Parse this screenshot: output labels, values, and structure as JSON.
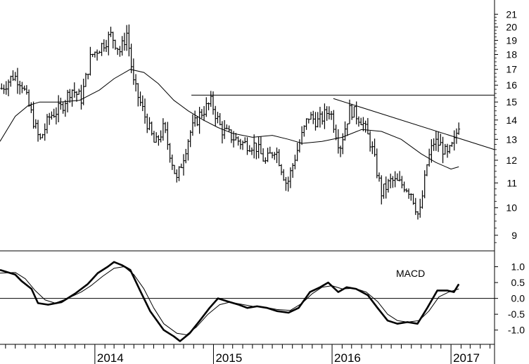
{
  "chart_data": [
    {
      "type": "ohlc",
      "panel": "price",
      "title": "",
      "xlabel": "",
      "ylabel": "",
      "scale": "log",
      "ylim": [
        8.5,
        22
      ],
      "y_ticks": [
        {
          "label": "21",
          "value": 21
        },
        {
          "label": "20",
          "value": 20
        },
        {
          "label": "19",
          "value": 19
        },
        {
          "label": "18",
          "value": 18
        },
        {
          "label": "17",
          "value": 17
        },
        {
          "label": "16",
          "value": 16
        },
        {
          "label": "15",
          "value": 15
        },
        {
          "label": "14",
          "value": 14
        },
        {
          "label": "13",
          "value": 13
        },
        {
          "label": "12",
          "value": 12
        },
        {
          "label": "11",
          "value": 11
        },
        {
          "label": "10",
          "value": 10
        },
        {
          "label": "9",
          "value": 9
        }
      ],
      "x_ticks": [
        "2014",
        "2015",
        "2016",
        "2017"
      ],
      "x_tick_dates": [
        "2014-01-01",
        "2015-01-01",
        "2016-01-01",
        "2017-01-01"
      ],
      "xlim": [
        "2013-03-15",
        "2017-05-15"
      ],
      "price_anchors": [
        {
          "date": "2013-03-20",
          "price": 15.8
        },
        {
          "date": "2013-04-25",
          "price": 16.6
        },
        {
          "date": "2013-05-20",
          "price": 16.2
        },
        {
          "date": "2013-06-20",
          "price": 14.3
        },
        {
          "date": "2013-07-15",
          "price": 12.9
        },
        {
          "date": "2013-08-15",
          "price": 14.2
        },
        {
          "date": "2013-09-20",
          "price": 14.7
        },
        {
          "date": "2013-10-20",
          "price": 15.8
        },
        {
          "date": "2013-11-20",
          "price": 15.2
        },
        {
          "date": "2013-12-20",
          "price": 17.9
        },
        {
          "date": "2014-01-20",
          "price": 18.6
        },
        {
          "date": "2014-02-20",
          "price": 19.4
        },
        {
          "date": "2014-03-20",
          "price": 18.2
        },
        {
          "date": "2014-04-10",
          "price": 19.6
        },
        {
          "date": "2014-04-30",
          "price": 16.1
        },
        {
          "date": "2014-06-10",
          "price": 13.9
        },
        {
          "date": "2014-07-05",
          "price": 12.7
        },
        {
          "date": "2014-08-01",
          "price": 13.6
        },
        {
          "date": "2014-09-10",
          "price": 11.1
        },
        {
          "date": "2014-10-20",
          "price": 13.3
        },
        {
          "date": "2014-11-20",
          "price": 14.3
        },
        {
          "date": "2014-12-25",
          "price": 15.0
        },
        {
          "date": "2015-01-25",
          "price": 13.5
        },
        {
          "date": "2015-03-01",
          "price": 13.1
        },
        {
          "date": "2015-04-01",
          "price": 12.8
        },
        {
          "date": "2015-05-10",
          "price": 12.7
        },
        {
          "date": "2015-06-10",
          "price": 11.9
        },
        {
          "date": "2015-07-10",
          "price": 12.6
        },
        {
          "date": "2015-08-15",
          "price": 10.9
        },
        {
          "date": "2015-09-10",
          "price": 12.2
        },
        {
          "date": "2015-10-20",
          "price": 14.2
        },
        {
          "date": "2015-11-20",
          "price": 13.9
        },
        {
          "date": "2015-12-25",
          "price": 14.6
        },
        {
          "date": "2016-01-25",
          "price": 12.6
        },
        {
          "date": "2016-02-25",
          "price": 14.6
        },
        {
          "date": "2016-04-01",
          "price": 14.0
        },
        {
          "date": "2016-05-01",
          "price": 12.7
        },
        {
          "date": "2016-06-01",
          "price": 10.6
        },
        {
          "date": "2016-07-01",
          "price": 11.1
        },
        {
          "date": "2016-08-10",
          "price": 10.9
        },
        {
          "date": "2016-09-01",
          "price": 10.6
        },
        {
          "date": "2016-09-25",
          "price": 9.6
        },
        {
          "date": "2016-10-20",
          "price": 11.9
        },
        {
          "date": "2016-11-10",
          "price": 12.9
        },
        {
          "date": "2016-12-01",
          "price": 12.7
        },
        {
          "date": "2016-12-20",
          "price": 12.2
        },
        {
          "date": "2017-01-10",
          "price": 12.8
        },
        {
          "date": "2017-01-25",
          "price": 13.8
        }
      ],
      "moving_average": [
        {
          "date": "2013-03-15",
          "price": 12.9
        },
        {
          "date": "2013-05-01",
          "price": 14.2
        },
        {
          "date": "2013-06-10",
          "price": 14.8
        },
        {
          "date": "2013-07-15",
          "price": 15.0
        },
        {
          "date": "2013-09-15",
          "price": 15.0
        },
        {
          "date": "2013-11-15",
          "price": 15.1
        },
        {
          "date": "2014-01-15",
          "price": 15.7
        },
        {
          "date": "2014-03-01",
          "price": 16.4
        },
        {
          "date": "2014-04-20",
          "price": 17.0
        },
        {
          "date": "2014-06-01",
          "price": 16.8
        },
        {
          "date": "2014-07-15",
          "price": 16.1
        },
        {
          "date": "2014-09-01",
          "price": 15.1
        },
        {
          "date": "2014-10-15",
          "price": 14.5
        },
        {
          "date": "2014-12-01",
          "price": 14.0
        },
        {
          "date": "2015-01-15",
          "price": 13.6
        },
        {
          "date": "2015-03-01",
          "price": 13.3
        },
        {
          "date": "2015-05-01",
          "price": 13.1
        },
        {
          "date": "2015-07-01",
          "price": 13.2
        },
        {
          "date": "2015-08-20",
          "price": 13.0
        },
        {
          "date": "2015-10-01",
          "price": 12.8
        },
        {
          "date": "2015-12-01",
          "price": 12.9
        },
        {
          "date": "2016-02-01",
          "price": 13.1
        },
        {
          "date": "2016-04-01",
          "price": 13.5
        },
        {
          "date": "2016-06-01",
          "price": 13.4
        },
        {
          "date": "2016-08-01",
          "price": 13.0
        },
        {
          "date": "2016-10-01",
          "price": 12.3
        },
        {
          "date": "2016-11-15",
          "price": 11.9
        },
        {
          "date": "2017-01-01",
          "price": 11.6
        },
        {
          "date": "2017-01-25",
          "price": 11.7
        }
      ],
      "trendlines": [
        {
          "from": {
            "date": "2014-10-25",
            "price": 15.4
          },
          "to": {
            "date": "2017-05-15",
            "price": 15.4
          }
        },
        {
          "from": {
            "date": "2016-01-05",
            "price": 15.2
          },
          "to": {
            "date": "2017-05-15",
            "price": 12.5
          }
        }
      ]
    },
    {
      "type": "line",
      "panel": "indicator",
      "annotation": "MACD",
      "title": "",
      "xlabel": "",
      "ylabel": "",
      "ylim": [
        -1.45,
        1.5
      ],
      "zero_line": 0,
      "y_ticks": [
        {
          "label": "1.0",
          "value": 1.0
        },
        {
          "label": "0.5",
          "value": 0.5
        },
        {
          "label": "0.0",
          "value": 0.0
        },
        {
          "label": "-0.5",
          "value": -0.5
        },
        {
          "label": "-1.0",
          "value": -1.0
        }
      ],
      "series": [
        {
          "style": "thick",
          "points": [
            {
              "date": "2013-03-15",
              "value": 0.9
            },
            {
              "date": "2013-05-01",
              "value": 0.75
            },
            {
              "date": "2013-05-20",
              "value": 0.55
            },
            {
              "date": "2013-06-20",
              "value": 0.3
            },
            {
              "date": "2013-07-10",
              "value": -0.15
            },
            {
              "date": "2013-08-10",
              "value": -0.2
            },
            {
              "date": "2013-09-20",
              "value": -0.12
            },
            {
              "date": "2013-11-01",
              "value": 0.15
            },
            {
              "date": "2013-12-10",
              "value": 0.45
            },
            {
              "date": "2014-01-10",
              "value": 0.8
            },
            {
              "date": "2014-02-10",
              "value": 1.0
            },
            {
              "date": "2014-03-01",
              "value": 1.15
            },
            {
              "date": "2014-03-25",
              "value": 1.05
            },
            {
              "date": "2014-04-20",
              "value": 0.9
            },
            {
              "date": "2014-05-20",
              "value": 0.25
            },
            {
              "date": "2014-06-20",
              "value": -0.4
            },
            {
              "date": "2014-08-01",
              "value": -1.0
            },
            {
              "date": "2014-09-01",
              "value": -1.2
            },
            {
              "date": "2014-09-20",
              "value": -1.35
            },
            {
              "date": "2014-10-20",
              "value": -1.1
            },
            {
              "date": "2014-11-20",
              "value": -0.7
            },
            {
              "date": "2014-12-20",
              "value": -0.3
            },
            {
              "date": "2015-01-15",
              "value": 0.0
            },
            {
              "date": "2015-02-15",
              "value": -0.1
            },
            {
              "date": "2015-03-20",
              "value": -0.2
            },
            {
              "date": "2015-04-15",
              "value": -0.3
            },
            {
              "date": "2015-05-15",
              "value": -0.25
            },
            {
              "date": "2015-06-15",
              "value": -0.3
            },
            {
              "date": "2015-07-15",
              "value": -0.4
            },
            {
              "date": "2015-08-20",
              "value": -0.45
            },
            {
              "date": "2015-09-20",
              "value": -0.3
            },
            {
              "date": "2015-10-25",
              "value": 0.2
            },
            {
              "date": "2015-11-25",
              "value": 0.35
            },
            {
              "date": "2015-12-20",
              "value": 0.5
            },
            {
              "date": "2016-01-20",
              "value": 0.2
            },
            {
              "date": "2016-02-15",
              "value": 0.35
            },
            {
              "date": "2016-03-15",
              "value": 0.3
            },
            {
              "date": "2016-04-20",
              "value": 0.1
            },
            {
              "date": "2016-05-20",
              "value": -0.3
            },
            {
              "date": "2016-06-20",
              "value": -0.7
            },
            {
              "date": "2016-07-20",
              "value": -0.8
            },
            {
              "date": "2016-08-20",
              "value": -0.75
            },
            {
              "date": "2016-09-20",
              "value": -0.8
            },
            {
              "date": "2016-10-20",
              "value": -0.3
            },
            {
              "date": "2016-11-20",
              "value": 0.25
            },
            {
              "date": "2016-12-20",
              "value": 0.25
            },
            {
              "date": "2017-01-10",
              "value": 0.2
            },
            {
              "date": "2017-01-25",
              "value": 0.45
            }
          ]
        },
        {
          "style": "thin",
          "points": [
            {
              "date": "2013-03-15",
              "value": 0.8
            },
            {
              "date": "2013-05-01",
              "value": 0.82
            },
            {
              "date": "2013-06-01",
              "value": 0.62
            },
            {
              "date": "2013-07-01",
              "value": 0.25
            },
            {
              "date": "2013-08-01",
              "value": -0.05
            },
            {
              "date": "2013-09-01",
              "value": -0.15
            },
            {
              "date": "2013-10-10",
              "value": 0.0
            },
            {
              "date": "2013-11-20",
              "value": 0.2
            },
            {
              "date": "2013-12-20",
              "value": 0.4
            },
            {
              "date": "2014-01-25",
              "value": 0.7
            },
            {
              "date": "2014-03-01",
              "value": 0.95
            },
            {
              "date": "2014-04-01",
              "value": 1.0
            },
            {
              "date": "2014-05-01",
              "value": 0.75
            },
            {
              "date": "2014-06-01",
              "value": 0.3
            },
            {
              "date": "2014-07-01",
              "value": -0.3
            },
            {
              "date": "2014-08-01",
              "value": -0.8
            },
            {
              "date": "2014-09-10",
              "value": -1.1
            },
            {
              "date": "2014-10-10",
              "value": -1.15
            },
            {
              "date": "2014-11-10",
              "value": -0.9
            },
            {
              "date": "2014-12-15",
              "value": -0.5
            },
            {
              "date": "2015-01-20",
              "value": -0.2
            },
            {
              "date": "2015-02-20",
              "value": -0.12
            },
            {
              "date": "2015-03-25",
              "value": -0.18
            },
            {
              "date": "2015-05-01",
              "value": -0.25
            },
            {
              "date": "2015-06-10",
              "value": -0.28
            },
            {
              "date": "2015-07-15",
              "value": -0.35
            },
            {
              "date": "2015-08-25",
              "value": -0.38
            },
            {
              "date": "2015-10-01",
              "value": -0.15
            },
            {
              "date": "2015-11-01",
              "value": 0.15
            },
            {
              "date": "2015-12-01",
              "value": 0.35
            },
            {
              "date": "2016-01-01",
              "value": 0.4
            },
            {
              "date": "2016-02-01",
              "value": 0.3
            },
            {
              "date": "2016-03-10",
              "value": 0.32
            },
            {
              "date": "2016-04-15",
              "value": 0.2
            },
            {
              "date": "2016-05-20",
              "value": -0.1
            },
            {
              "date": "2016-06-20",
              "value": -0.5
            },
            {
              "date": "2016-07-20",
              "value": -0.7
            },
            {
              "date": "2016-08-20",
              "value": -0.75
            },
            {
              "date": "2016-09-25",
              "value": -0.7
            },
            {
              "date": "2016-10-25",
              "value": -0.4
            },
            {
              "date": "2016-11-25",
              "value": 0.05
            },
            {
              "date": "2016-12-25",
              "value": 0.2
            },
            {
              "date": "2017-01-25",
              "value": 0.3
            }
          ]
        }
      ]
    }
  ]
}
